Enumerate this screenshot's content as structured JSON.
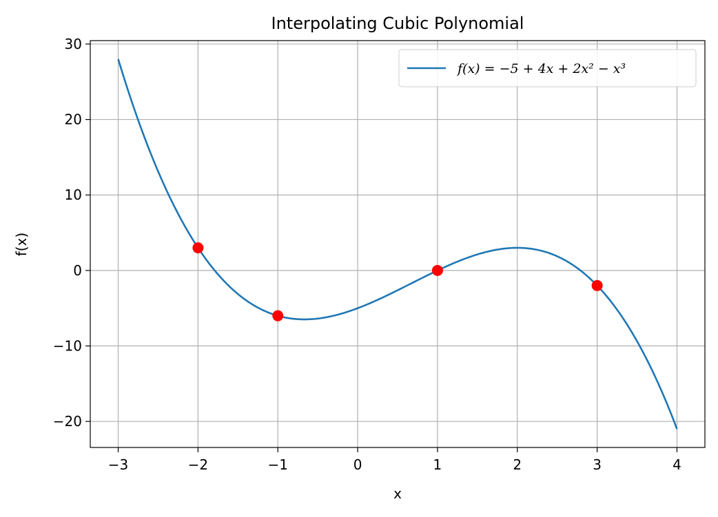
{
  "chart_data": {
    "type": "line",
    "title": "Interpolating Cubic Polynomial",
    "xlabel": "x",
    "ylabel": "f(x)",
    "xlim": [
      -3.35,
      4.35
    ],
    "ylim": [
      -23.45,
      30.45
    ],
    "x_ticks": [
      -3,
      -2,
      -1,
      0,
      1,
      2,
      3,
      4
    ],
    "x_tick_labels": [
      "−3",
      "−2",
      "−1",
      "0",
      "1",
      "2",
      "3",
      "4"
    ],
    "y_ticks": [
      -20,
      -10,
      0,
      10,
      20,
      30
    ],
    "y_tick_labels": [
      "−20",
      "−10",
      "0",
      "10",
      "20",
      "30"
    ],
    "grid": true,
    "legend_position": "top-right",
    "series": [
      {
        "name": "f(x) = −5 + 4x + 2x² − x³",
        "kind": "line",
        "color": "#1f77b4",
        "coefficients": [
          -5,
          4,
          2,
          -1
        ],
        "x_range": [
          -3,
          4
        ]
      },
      {
        "kind": "points",
        "color": "#ff0000",
        "x": [
          -2,
          -1,
          1,
          3
        ],
        "y": [
          3,
          -6,
          0,
          -2
        ]
      }
    ]
  }
}
